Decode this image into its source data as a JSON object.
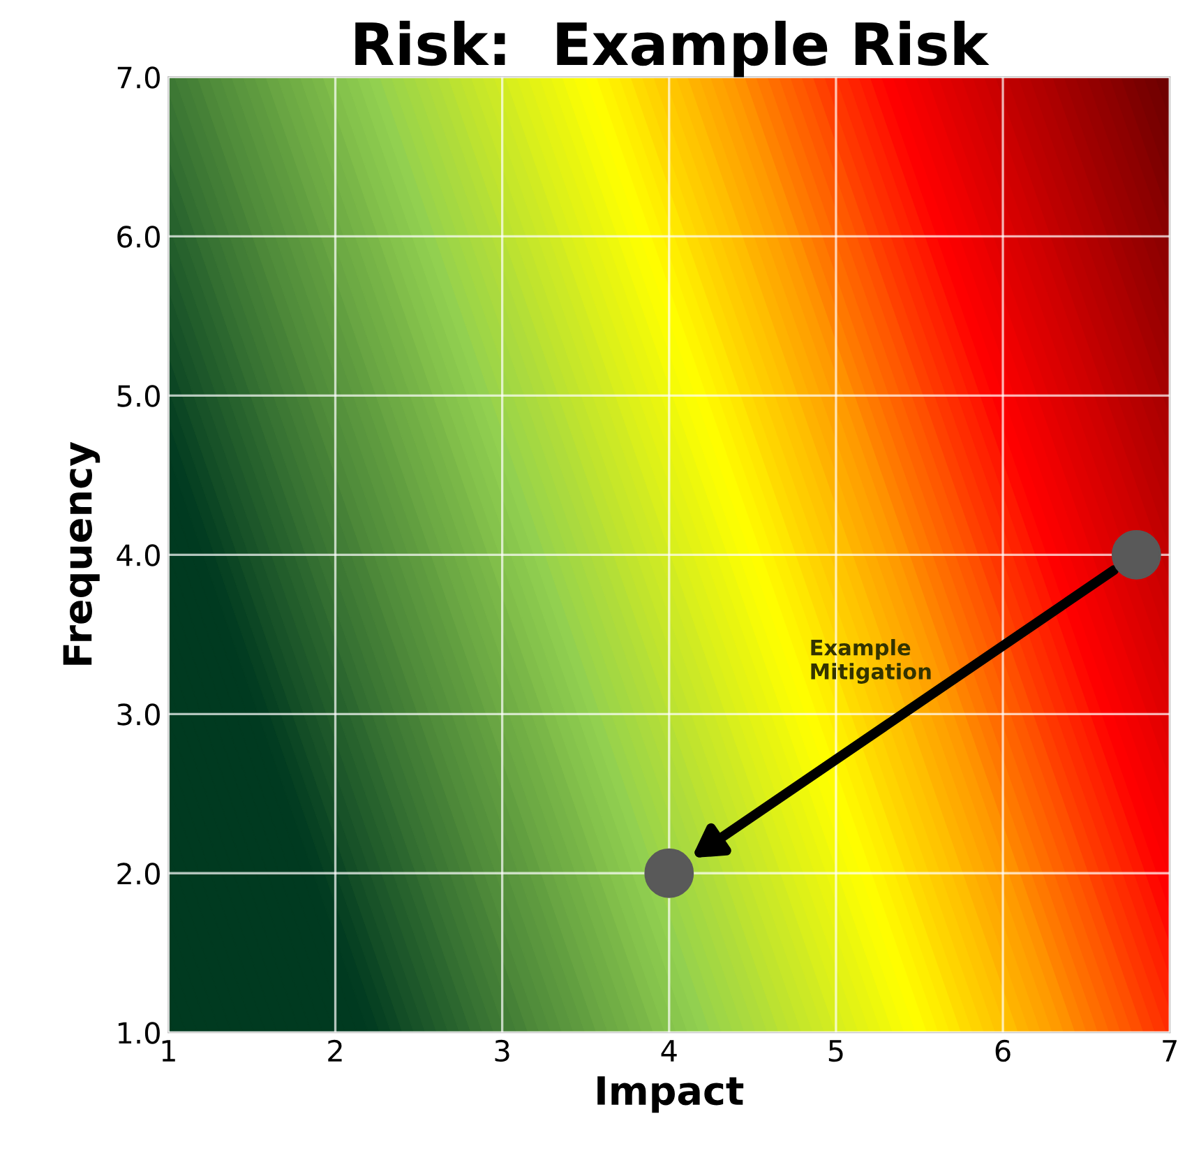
{
  "chart_data": {
    "type": "scatter",
    "title": "Risk:  Example Risk",
    "xlabel": "Impact",
    "ylabel": "Frequency",
    "x": [
      6.8,
      4.0
    ],
    "series": [
      {
        "color": "#595959",
        "values": [
          4.0,
          2.0
        ]
      }
    ],
    "annotations": [
      "Example\nMitigation"
    ],
    "xlim": [
      1,
      7
    ],
    "ylim": [
      1,
      7
    ],
    "xticks": [
      1,
      2,
      3,
      4,
      5,
      6,
      7
    ],
    "yticks": [
      {
        "value": 1,
        "label": "1.0"
      },
      {
        "value": 2,
        "label": "2.0"
      },
      {
        "value": 3,
        "label": "3.0"
      },
      {
        "value": 4,
        "label": "4.0"
      },
      {
        "value": 5,
        "label": "5.0"
      },
      {
        "value": 6,
        "label": "6.0"
      },
      {
        "value": 7,
        "label": "7.0"
      }
    ],
    "grid": true,
    "marker": "circle",
    "legend": false
  }
}
